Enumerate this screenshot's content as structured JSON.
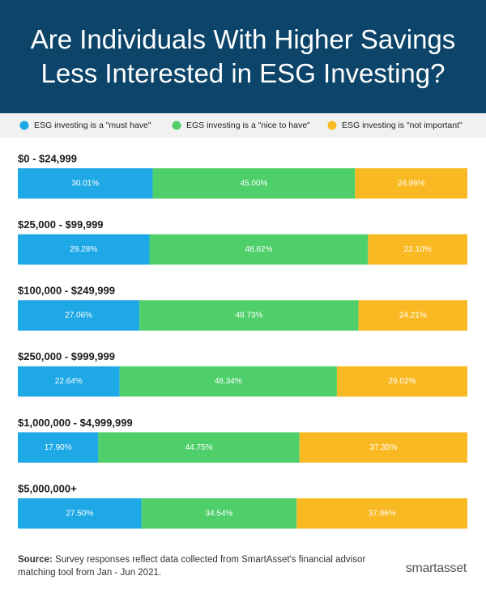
{
  "chart_data": {
    "type": "stacked-bar-horizontal",
    "title": "Are Individuals With Higher Savings Less Interested in ESG Investing?",
    "categories": [
      "$0 - $24,999",
      "$25,000 - $99,999",
      "$100,000 - $249,999",
      "$250,000 - $999,999",
      "$1,000,000 - $4,999,999",
      "$5,000,000+"
    ],
    "xlim": [
      0,
      100
    ],
    "series": [
      {
        "name": "ESG investing is a \"must have\"",
        "color": "#1ea8e6",
        "values": [
          30.01,
          29.28,
          27.06,
          22.64,
          17.9,
          27.5
        ],
        "value_labels": [
          "30.01%",
          "29.28%",
          "27.06%",
          "22.64%",
          "17.90%",
          "27.50%"
        ]
      },
      {
        "name": "EGS investing is a \"nice to have\"",
        "color": "#4fcf6a",
        "values": [
          45.0,
          48.62,
          48.73,
          48.34,
          44.75,
          34.54
        ],
        "value_labels": [
          "45.00%",
          "48.62%",
          "48.73%",
          "48.34%",
          "44.75%",
          "34.54%"
        ]
      },
      {
        "name": "ESG investing is \"not important\"",
        "color": "#f9b922",
        "values": [
          24.99,
          22.1,
          24.21,
          29.02,
          37.35,
          37.96
        ],
        "value_labels": [
          "24.99%",
          "22.10%",
          "24.21%",
          "29.02%",
          "37.35%",
          "37.96%"
        ]
      }
    ],
    "source_label": "Source:",
    "source_text": "Survey responses reflect data collected from SmartAsset's financial advisor matching tool from Jan - Jun 2021.",
    "brand": "smartasset"
  }
}
